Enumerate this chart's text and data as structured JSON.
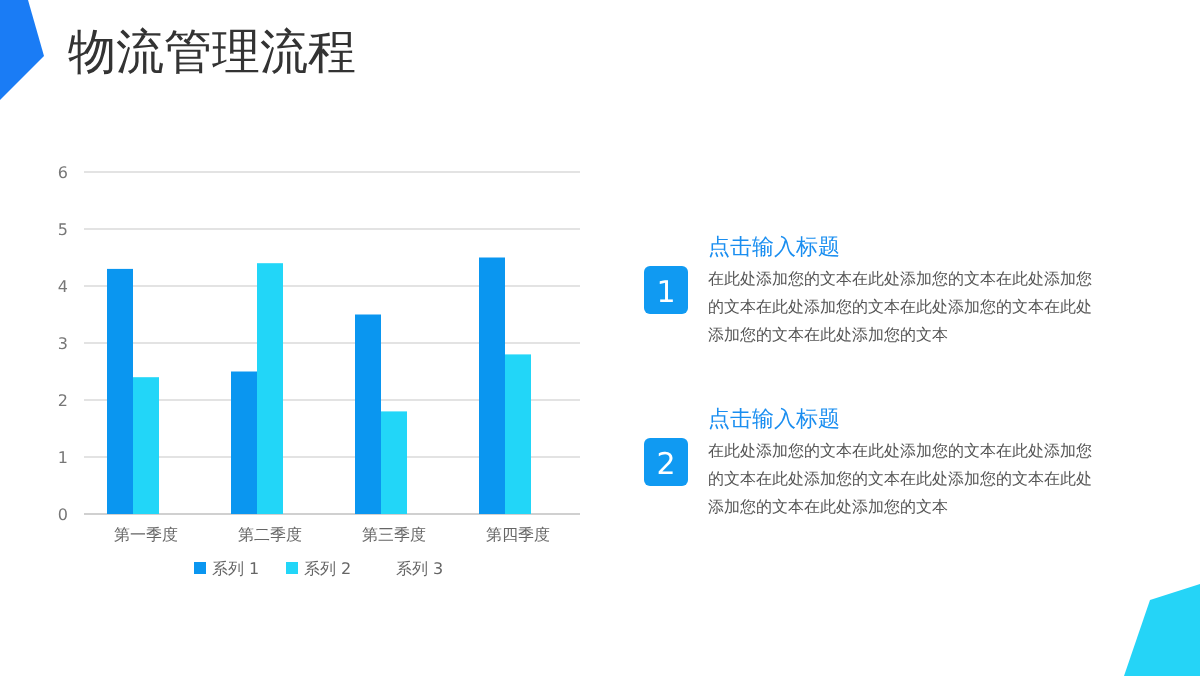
{
  "chart_data": {
    "type": "bar",
    "title": "物流管理流程",
    "categories": [
      "第一季度",
      "第二季度",
      "第三季度",
      "第四季度"
    ],
    "series": [
      {
        "name": "系列 1",
        "color": "#0a96f0",
        "values": [
          4.3,
          2.5,
          3.5,
          4.5
        ]
      },
      {
        "name": "系列 2",
        "color": "#22d6f8",
        "values": [
          2.4,
          4.4,
          1.8,
          2.8
        ]
      },
      {
        "name": "系列 3",
        "values": [
          null,
          null,
          null,
          null
        ]
      }
    ],
    "ylim": [
      0,
      6
    ],
    "yticks": [
      0,
      1,
      2,
      3,
      4,
      5,
      6
    ],
    "grid": "y",
    "legend": "bottom",
    "annotations": [
      "1",
      "点击输入标题",
      "在此处添加您的文本在此处添加您的文本在此处添加您的文本在此处添加您的文本在此处添加您的文本在此处添加您的文本在此处添加您的文本",
      "2",
      "点击输入标题",
      "在此处添加您的文本在此处添加您的文本在此处添加您的文本在此处添加您的文本在此处添加您的文本在此处添加您的文本在此处添加您的文本"
    ]
  }
}
